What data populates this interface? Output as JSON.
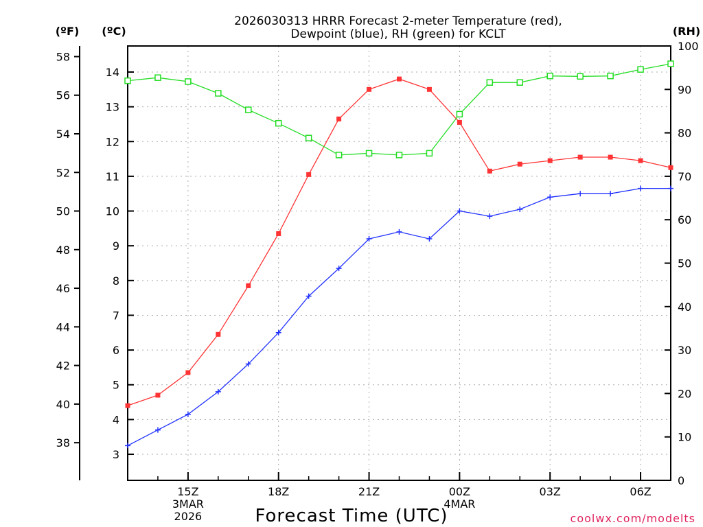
{
  "chart_data": {
    "type": "line",
    "title": [
      "2026030313 HRRR Forecast 2-meter Temperature (red),",
      "Dewpoint (blue), RH (green) for KCLT"
    ],
    "xlabel": "Forecast Time (UTC)",
    "credit": "coolwx.com/modelts",
    "units": {
      "fahrenheit": "(ºF)",
      "celsius": "(ºC)",
      "rh": "(RH)"
    },
    "x": [
      13,
      14,
      15,
      16,
      17,
      18,
      19,
      20,
      21,
      22,
      23,
      24,
      25,
      26,
      27,
      28,
      29,
      30,
      31
    ],
    "xlim": [
      13,
      31
    ],
    "x_ticks": [
      {
        "x": 15,
        "lines": [
          "15Z",
          "3MAR",
          "2026"
        ]
      },
      {
        "x": 18,
        "lines": [
          "18Z"
        ]
      },
      {
        "x": 21,
        "lines": [
          "21Z"
        ]
      },
      {
        "x": 24,
        "lines": [
          "00Z",
          "4MAR"
        ]
      },
      {
        "x": 27,
        "lines": [
          "03Z"
        ]
      },
      {
        "x": 30,
        "lines": [
          "06Z"
        ]
      }
    ],
    "celsius_axis": {
      "ylim": [
        2.25,
        14.75
      ],
      "ticks": [
        3,
        4,
        5,
        6,
        7,
        8,
        9,
        10,
        11,
        12,
        13,
        14
      ]
    },
    "fahrenheit_ticks": [
      38,
      40,
      42,
      44,
      46,
      48,
      50,
      52,
      54,
      56,
      58
    ],
    "rh_axis": {
      "ylim": [
        0,
        100
      ],
      "ticks": [
        0,
        10,
        20,
        30,
        40,
        50,
        60,
        70,
        80,
        90,
        100
      ]
    },
    "series": [
      {
        "name": "2-meter Temperature",
        "axis": "celsius",
        "color": "#ff3333",
        "marker": "filled-square",
        "values": [
          4.4,
          4.7,
          5.35,
          6.45,
          7.85,
          9.35,
          11.05,
          12.65,
          13.5,
          13.8,
          13.5,
          12.55,
          11.15,
          11.35,
          11.45,
          11.55,
          11.55,
          11.45,
          11.25
        ]
      },
      {
        "name": "Dewpoint",
        "axis": "celsius",
        "color": "#2233ff",
        "marker": "plus",
        "values": [
          3.25,
          3.7,
          4.15,
          4.8,
          5.6,
          6.5,
          7.55,
          8.35,
          9.2,
          9.4,
          9.2,
          10.0,
          9.85,
          10.05,
          10.4,
          10.5,
          10.5,
          10.65,
          10.65
        ]
      },
      {
        "name": "RH",
        "axis": "rh",
        "color": "#22dd22",
        "marker": "open-square",
        "values": [
          92,
          92.7,
          91.8,
          89.1,
          85.3,
          82.2,
          78.8,
          74.9,
          75.3,
          74.9,
          75.3,
          84.3,
          91.6,
          91.6,
          93.1,
          93.0,
          93.1,
          94.6,
          95.9
        ]
      }
    ]
  }
}
